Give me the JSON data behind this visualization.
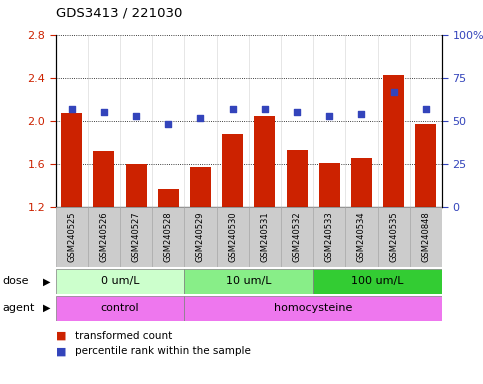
{
  "title": "GDS3413 / 221030",
  "samples": [
    "GSM240525",
    "GSM240526",
    "GSM240527",
    "GSM240528",
    "GSM240529",
    "GSM240530",
    "GSM240531",
    "GSM240532",
    "GSM240533",
    "GSM240534",
    "GSM240535",
    "GSM240848"
  ],
  "transformed_count": [
    2.07,
    1.72,
    1.6,
    1.37,
    1.57,
    1.88,
    2.05,
    1.73,
    1.61,
    1.66,
    2.43,
    1.97
  ],
  "percentile_rank": [
    57,
    55,
    53,
    48,
    52,
    57,
    57,
    55,
    53,
    54,
    67,
    57
  ],
  "bar_color": "#cc2200",
  "dot_color": "#3344bb",
  "ylim_left": [
    1.2,
    2.8
  ],
  "ylim_right": [
    0,
    100
  ],
  "yticks_left": [
    1.2,
    1.6,
    2.0,
    2.4,
    2.8
  ],
  "yticks_right": [
    0,
    25,
    50,
    75,
    100
  ],
  "ytick_labels_left": [
    "1.2",
    "1.6",
    "2.0",
    "2.4",
    "2.8"
  ],
  "ytick_labels_right": [
    "0",
    "25",
    "50",
    "75",
    "100%"
  ],
  "dose_groups": [
    {
      "label": "0 um/L",
      "start": 0,
      "end": 4,
      "color": "#ccffcc"
    },
    {
      "label": "10 um/L",
      "start": 4,
      "end": 8,
      "color": "#88ee88"
    },
    {
      "label": "100 um/L",
      "start": 8,
      "end": 12,
      "color": "#33cc33"
    }
  ],
  "agent_groups": [
    {
      "label": "control",
      "start": 0,
      "end": 4,
      "color": "#ee77ee"
    },
    {
      "label": "homocysteine",
      "start": 4,
      "end": 12,
      "color": "#ee77ee"
    }
  ],
  "legend_bar_label": "transformed count",
  "legend_dot_label": "percentile rank within the sample",
  "bg_color": "#ffffff",
  "plot_bg_color": "#ffffff",
  "label_left_color": "#cc2200",
  "label_right_color": "#3344bb",
  "xtick_bg_color": "#cccccc",
  "xtick_border_color": "#aaaaaa"
}
